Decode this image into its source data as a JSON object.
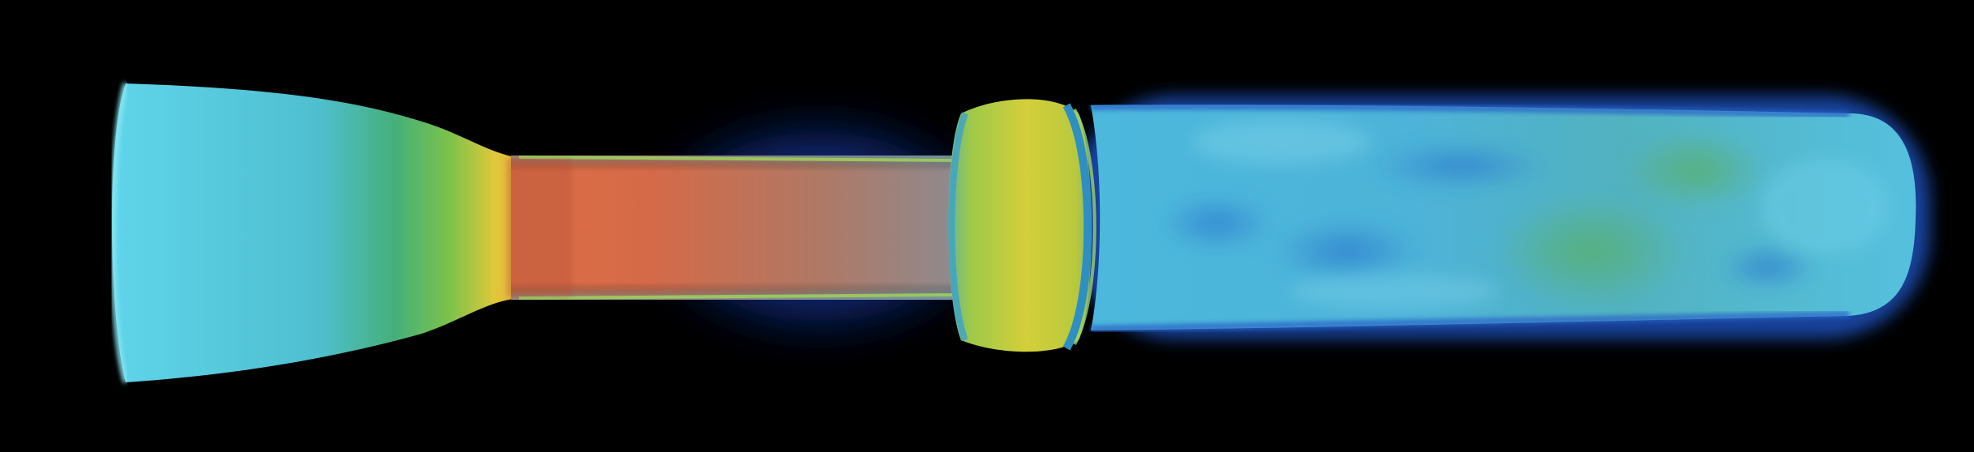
{
  "scene": {
    "background_color": "#000000",
    "colormap": [
      "#123a9a",
      "#1f5fd0",
      "#43b9e0",
      "#5fcfe6",
      "#4fb39a",
      "#64c257",
      "#d7d33a",
      "#f0a43a",
      "#d0603a"
    ],
    "regions": [
      {
        "name": "inlet-expansion",
        "dominant_color": "#58c9dc"
      },
      {
        "name": "throat-transition",
        "dominant_color": "#e6b43a"
      },
      {
        "name": "core-jet",
        "dominant_color": "#cf6a4c"
      },
      {
        "name": "shock-disk",
        "dominant_color": "#c9cf45"
      },
      {
        "name": "turbulent-plume",
        "dominant_color": "#4fb7d6"
      }
    ]
  }
}
